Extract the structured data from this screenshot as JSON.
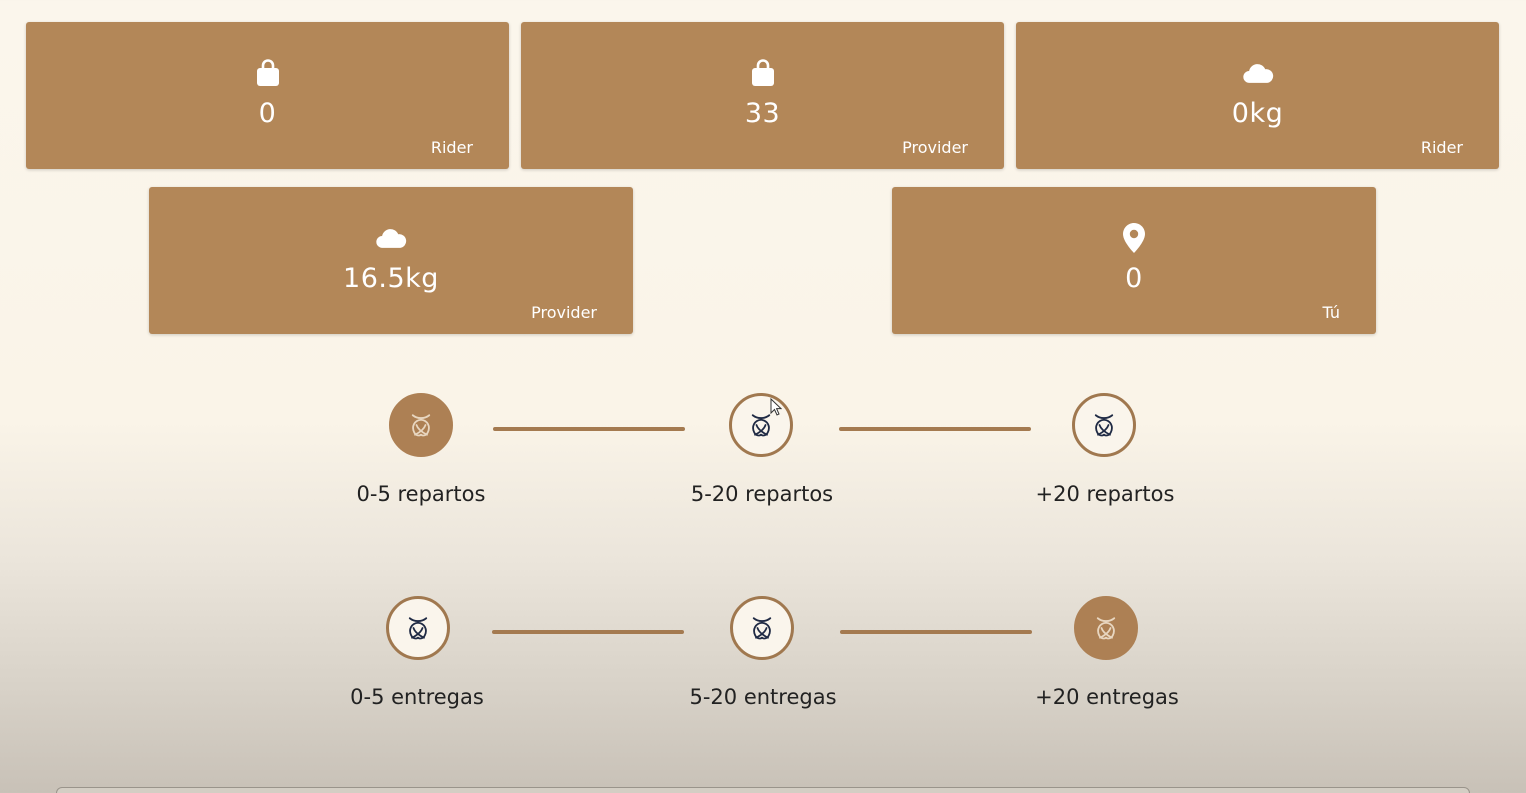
{
  "stats": [
    {
      "icon": "shopping-bag-icon",
      "value": "0",
      "owner": "Rider"
    },
    {
      "icon": "shopping-bag-icon",
      "value": "33",
      "owner": "Provider"
    },
    {
      "icon": "cloud-icon",
      "value": "0kg",
      "owner": "Rider"
    },
    {
      "icon": "cloud-icon",
      "value": "16.5kg",
      "owner": "Provider"
    },
    {
      "icon": "location-pin-icon",
      "value": "0",
      "owner": "Tú"
    }
  ],
  "repartos": [
    {
      "label": "0-5 repartos",
      "active": true
    },
    {
      "label": "5-20 repartos",
      "active": false
    },
    {
      "label": "+20 repartos",
      "active": false
    }
  ],
  "entregas": [
    {
      "label": "0-5 entregas",
      "active": false
    },
    {
      "label": "5-20 entregas",
      "active": false
    },
    {
      "label": "+20 entregas",
      "active": true
    }
  ],
  "colors": {
    "card": "#b38758",
    "accent": "#a47a50",
    "badge_outline": "#a0784f",
    "badge_icon": "#1f2a44"
  }
}
